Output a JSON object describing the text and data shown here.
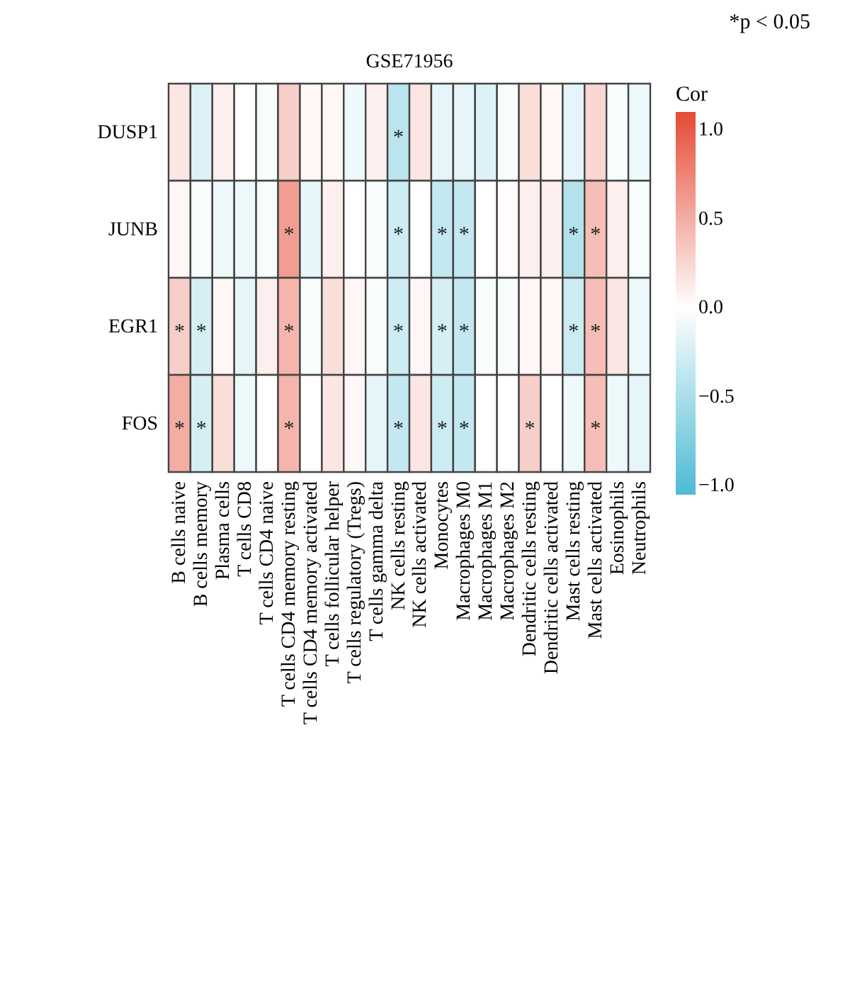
{
  "chart_data": {
    "type": "heatmap",
    "title": "GSE71956",
    "clabel": "Cor",
    "annotations": [
      "*p < 0.05"
    ],
    "categories": [
      "B cells naive",
      "B cells memory",
      "Plasma cells",
      "T cells CD8",
      "T cells CD4 naive",
      "T cells CD4 memory resting",
      "T cells CD4 memory activated",
      "T cells follicular helper",
      "T cells regulatory (Tregs)",
      "T cells gamma delta",
      "NK cells resting",
      "NK cells activated",
      "Monocytes",
      "Macrophages M0",
      "Macrophages M1",
      "Macrophages M2",
      "Dendritic cells resting",
      "Dendritic cells activated",
      "Mast cells resting",
      "Mast cells activated",
      "Eosinophils",
      "Neutrophils"
    ],
    "y_categories": [
      "DUSP1",
      "JUNB",
      "EGR1",
      "FOS"
    ],
    "cells": [
      [
        0.15,
        -0.2,
        0.1,
        0.0,
        -0.05,
        0.3,
        0.05,
        0.05,
        -0.1,
        0.1,
        -0.4,
        0.15,
        -0.15,
        -0.15,
        -0.2,
        -0.05,
        0.2,
        0.05,
        -0.15,
        0.25,
        -0.05,
        -0.1
      ],
      [
        0.05,
        -0.05,
        -0.1,
        -0.1,
        -0.05,
        0.6,
        -0.15,
        0.1,
        0.0,
        -0.05,
        -0.3,
        0.0,
        -0.35,
        -0.35,
        0.0,
        0.02,
        0.1,
        0.1,
        -0.45,
        0.4,
        0.1,
        -0.05
      ],
      [
        0.3,
        -0.25,
        0.05,
        -0.15,
        0.1,
        0.45,
        -0.05,
        0.2,
        0.05,
        -0.05,
        -0.3,
        0.05,
        -0.25,
        -0.35,
        -0.05,
        -0.05,
        0.05,
        0.05,
        -0.3,
        0.4,
        0.15,
        -0.1
      ],
      [
        0.5,
        -0.25,
        0.2,
        -0.1,
        0.0,
        0.45,
        0.0,
        0.15,
        0.05,
        -0.15,
        -0.35,
        0.15,
        -0.3,
        -0.35,
        0.0,
        0.0,
        0.3,
        0.0,
        -0.1,
        0.4,
        -0.1,
        -0.15
      ]
    ],
    "cell_labels": [
      [
        null,
        null,
        null,
        null,
        null,
        null,
        null,
        null,
        null,
        null,
        "*",
        null,
        null,
        null,
        null,
        null,
        null,
        null,
        null,
        null,
        null,
        null
      ],
      [
        null,
        null,
        null,
        null,
        null,
        "*",
        null,
        null,
        null,
        null,
        "*",
        null,
        "*",
        "*",
        null,
        null,
        null,
        null,
        "*",
        "*",
        null,
        null
      ],
      [
        "*",
        "*",
        null,
        null,
        null,
        "*",
        null,
        null,
        null,
        null,
        "*",
        null,
        "*",
        "*",
        null,
        null,
        null,
        null,
        "*",
        "*",
        null,
        null
      ],
      [
        "*",
        "*",
        null,
        null,
        null,
        "*",
        null,
        null,
        null,
        null,
        "*",
        null,
        "*",
        "*",
        null,
        null,
        "*",
        null,
        null,
        "*",
        null,
        null
      ]
    ],
    "clim": [
      -1.05,
      1.1
    ],
    "cticks": [
      {
        "value": -1.0,
        "label": "−1.0"
      },
      {
        "value": -0.5,
        "label": "−0.5"
      },
      {
        "value": 0.0,
        "label": "0.0"
      },
      {
        "value": 0.5,
        "label": "0.5"
      },
      {
        "value": 1.0,
        "label": "1.0"
      }
    ]
  }
}
